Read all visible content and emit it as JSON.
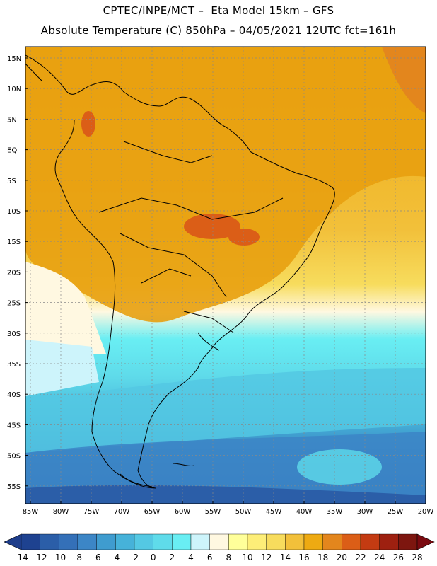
{
  "title_line1": "CPTEC/INPE/MCT –  Eta Model 15km – GFS",
  "title_line2": "Absolute Temperature (C) 850hPa – 04/05/2021 12UTC fct=161h",
  "lat_labels": [
    "15N",
    "10N",
    "5N",
    "EQ",
    "5S",
    "10S",
    "15S",
    "20S",
    "25S",
    "30S",
    "35S",
    "40S",
    "45S",
    "50S",
    "55S"
  ],
  "lon_labels": [
    "85W",
    "80W",
    "75W",
    "70W",
    "65W",
    "60W",
    "55W",
    "50W",
    "45W",
    "40W",
    "35W",
    "30W",
    "25W",
    "20W"
  ],
  "colorbar": {
    "labels": [
      "-14",
      "-12",
      "-10",
      "-8",
      "-6",
      "-4",
      "-2",
      "0",
      "2",
      "4",
      "6",
      "8",
      "10",
      "12",
      "14",
      "16",
      "18",
      "20",
      "22",
      "24",
      "26",
      "28"
    ],
    "under_color": "#1e3d8a",
    "over_color": "#7a0a10",
    "colors": [
      "#1e4290",
      "#2b5ea8",
      "#3470b8",
      "#3c86c6",
      "#3f9ccf",
      "#46b2d9",
      "#54c8e3",
      "#5fdbea",
      "#69eef3",
      "#cdf4fb",
      "#fff8e1",
      "#ffff9a",
      "#fdee78",
      "#f7dc5d",
      "#f2c03a",
      "#eeaa12",
      "#e3861d",
      "#db5e17",
      "#c43b12",
      "#9e2010",
      "#7d160f"
    ]
  }
}
